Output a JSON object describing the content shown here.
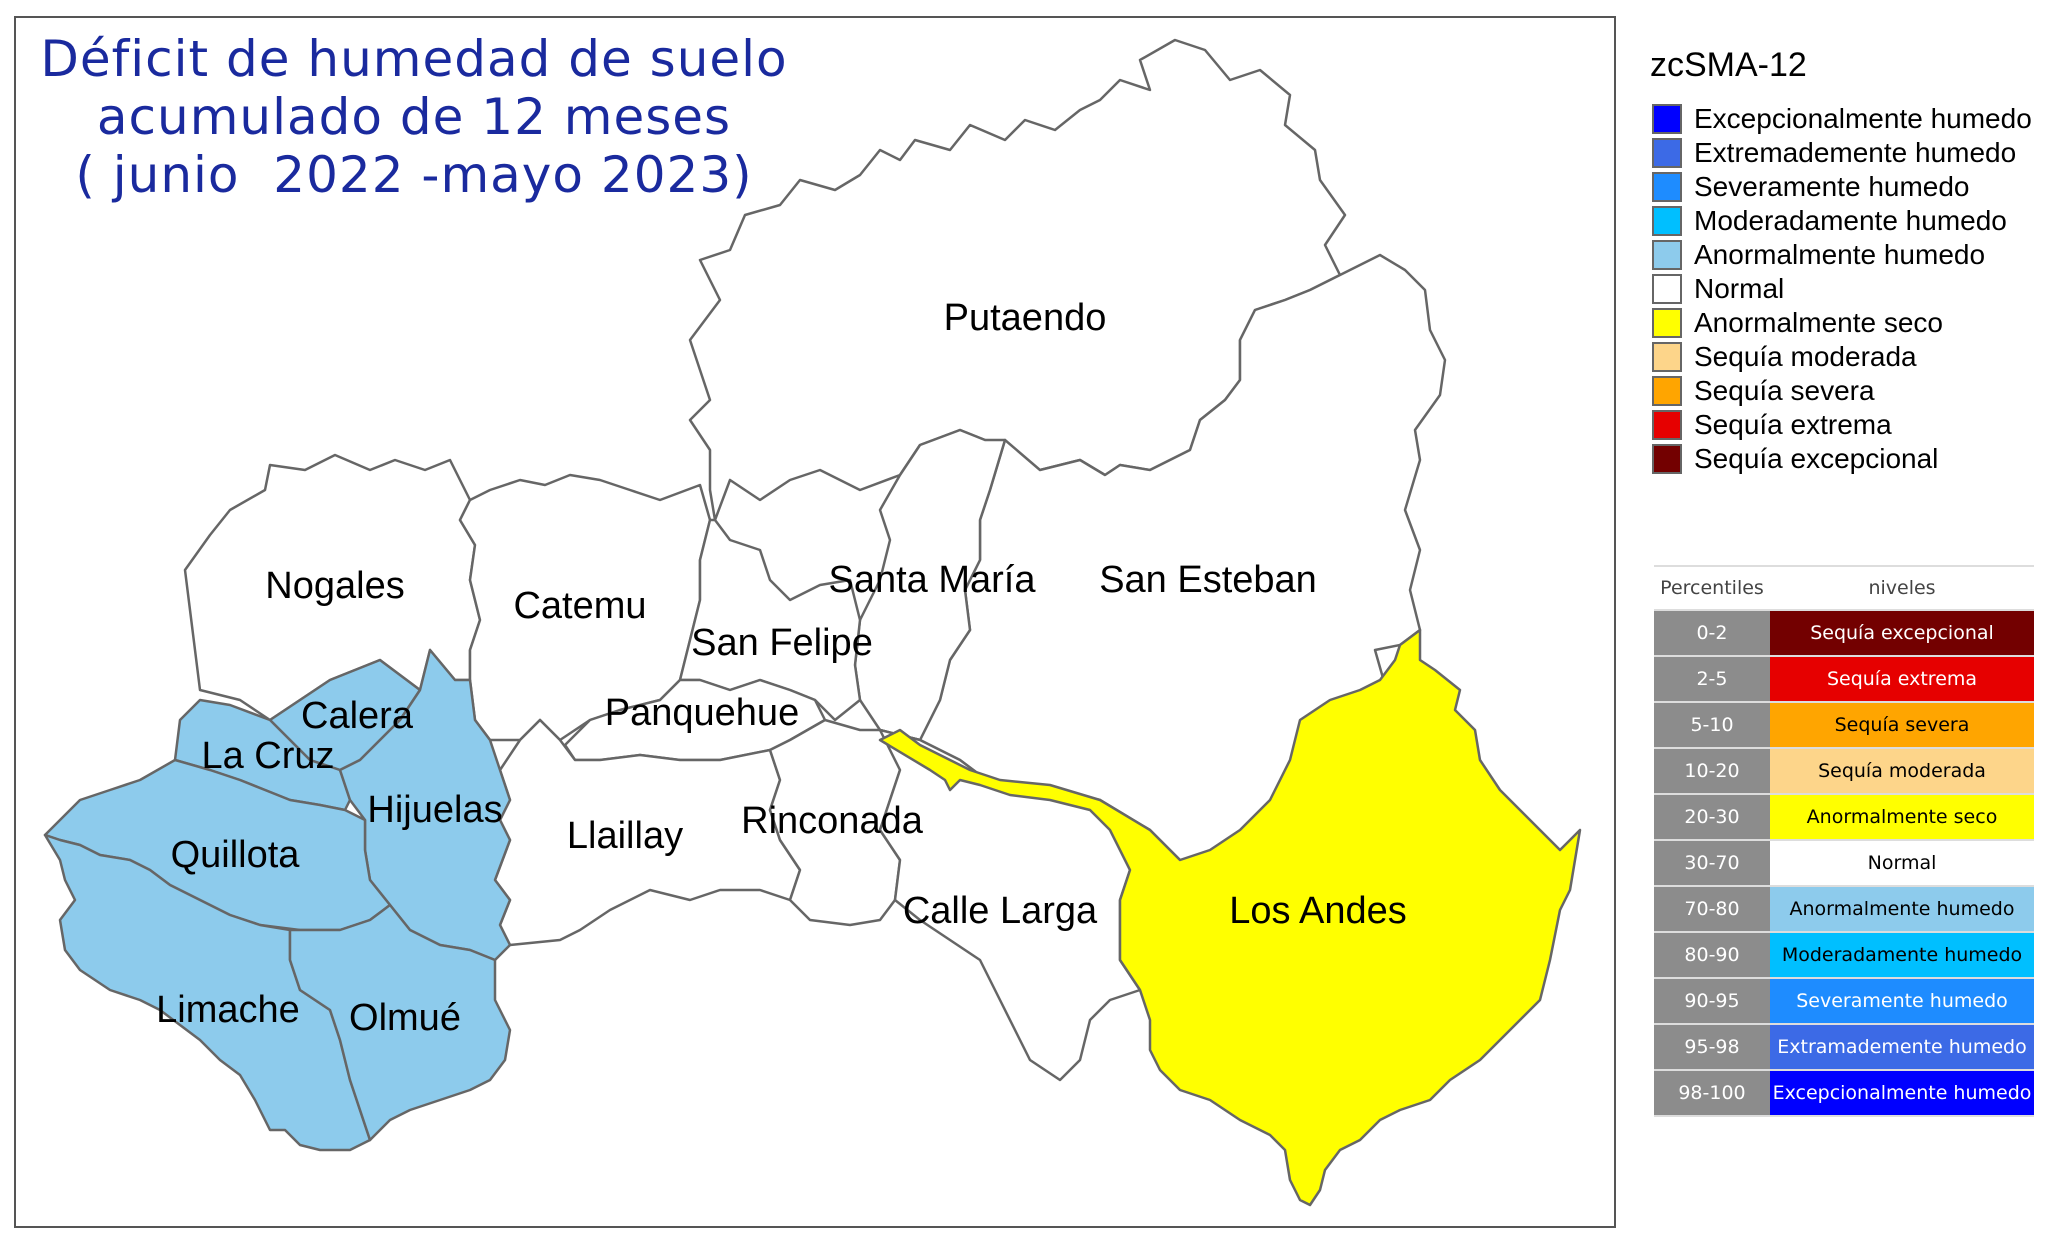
{
  "title": {
    "line1": "Déficit de humedad de suelo",
    "line2": "acumulado de 12 meses",
    "line3": "( junio  2022 -mayo 2023)"
  },
  "colors": {
    "white": "#ffffff",
    "light_blue": "#8dcbec",
    "yellow": "#ffff00",
    "border": "#666666"
  },
  "regions": [
    {
      "name": "Putaendo",
      "class": "Normal"
    },
    {
      "name": "Nogales",
      "class": "Normal"
    },
    {
      "name": "Catemu",
      "class": "Normal"
    },
    {
      "name": "Santa María",
      "class": "Normal"
    },
    {
      "name": "San Esteban",
      "class": "Normal"
    },
    {
      "name": "San Felipe",
      "class": "Normal"
    },
    {
      "name": "Panquehue",
      "class": "Normal"
    },
    {
      "name": "Calera",
      "class": "Anormalmente humedo"
    },
    {
      "name": "La Cruz",
      "class": "Anormalmente humedo"
    },
    {
      "name": "Hijuelas",
      "class": "Anormalmente humedo"
    },
    {
      "name": "Quillota",
      "class": "Anormalmente humedo"
    },
    {
      "name": "Llaillay",
      "class": "Normal"
    },
    {
      "name": "Rinconada",
      "class": "Normal"
    },
    {
      "name": "Calle Larga",
      "class": "Normal"
    },
    {
      "name": "Los Andes",
      "class": "Anormalmente seco"
    },
    {
      "name": "Limache",
      "class": "Anormalmente humedo"
    },
    {
      "name": "Olmué",
      "class": "Anormalmente humedo"
    }
  ],
  "legend": {
    "title": "zcSMA-12",
    "items": [
      {
        "label": "Excepcionalmente humedo",
        "color": "#0000ff"
      },
      {
        "label": "Extremademente humedo",
        "color": "#3c6ae6"
      },
      {
        "label": "Severamente humedo",
        "color": "#1e8cff"
      },
      {
        "label": "Moderadamente humedo",
        "color": "#00bfff"
      },
      {
        "label": "Anormalmente humedo",
        "color": "#8dcbec"
      },
      {
        "label": "Normal",
        "color": "#ffffff"
      },
      {
        "label": "Anormalmente seco",
        "color": "#ffff00"
      },
      {
        "label": "Sequía moderada",
        "color": "#fdd58a"
      },
      {
        "label": "Sequía severa",
        "color": "#ffa500"
      },
      {
        "label": "Sequía extrema",
        "color": "#e60000"
      },
      {
        "label": "Sequía excepcional",
        "color": "#730000"
      }
    ]
  },
  "table": {
    "header_percentiles": "Percentiles",
    "header_niveles": "niveles",
    "rows": [
      {
        "range": "0-2",
        "level": "Sequía excepcional",
        "color": "#730000",
        "text": "#ffffff"
      },
      {
        "range": "2-5",
        "level": "Sequía extrema",
        "color": "#e60000",
        "text": "#ffffff"
      },
      {
        "range": "5-10",
        "level": "Sequía severa",
        "color": "#ffa500",
        "text": "#000000"
      },
      {
        "range": "10-20",
        "level": "Sequía moderada",
        "color": "#fdd58a",
        "text": "#000000"
      },
      {
        "range": "20-30",
        "level": "Anormalmente seco",
        "color": "#ffff00",
        "text": "#000000"
      },
      {
        "range": "30-70",
        "level": "Normal",
        "color": "#ffffff",
        "text": "#000000"
      },
      {
        "range": "70-80",
        "level": "Anormalmente humedo",
        "color": "#8dcbec",
        "text": "#000000"
      },
      {
        "range": "80-90",
        "level": "Moderadamente humedo",
        "color": "#00bfff",
        "text": "#000000"
      },
      {
        "range": "90-95",
        "level": "Severamente humedo",
        "color": "#1e8cff",
        "text": "#ffffff"
      },
      {
        "range": "95-98",
        "level": "Extramademente humedo",
        "color": "#3c6ae6",
        "text": "#ffffff"
      },
      {
        "range": "98-100",
        "level": "Excepcionalmente humedo",
        "color": "#0000ff",
        "text": "#ffffff"
      }
    ]
  }
}
